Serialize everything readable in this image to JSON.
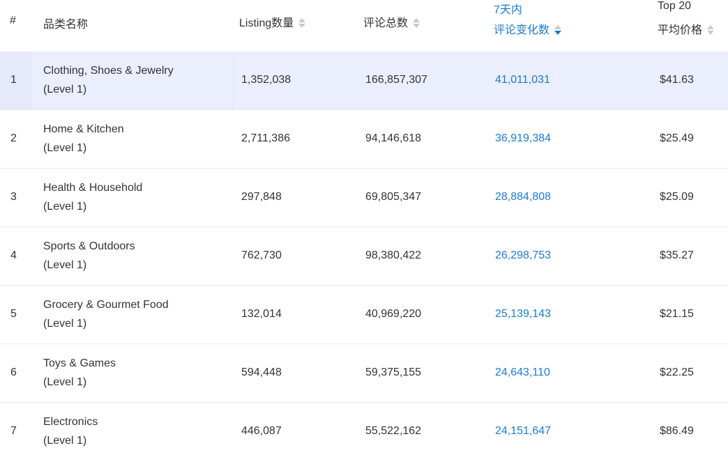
{
  "header": {
    "index": "#",
    "category": "品类名称",
    "listing": "Listing数量",
    "reviews_total": "评论总数",
    "change_line1": "7天内",
    "change_line2": "评论变化数",
    "price_line1": "Top 20",
    "price_line2": "平均价格"
  },
  "sort": {
    "active_column": "评论变化数",
    "direction": "descending"
  },
  "colors": {
    "accent": "#1b7bd4",
    "highlight_row": "#ebeefc"
  },
  "rows": [
    {
      "index": "1",
      "name": "Clothing, Shoes & Jewelry",
      "level": "(Level 1)",
      "listing": "1,352,038",
      "reviews": "166,857,307",
      "change": "41,011,031",
      "price": "$41.63"
    },
    {
      "index": "2",
      "name": "Home & Kitchen",
      "level": "(Level 1)",
      "listing": "2,711,386",
      "reviews": "94,146,618",
      "change": "36,919,384",
      "price": "$25.49"
    },
    {
      "index": "3",
      "name": "Health & Household",
      "level": "(Level 1)",
      "listing": "297,848",
      "reviews": "69,805,347",
      "change": "28,884,808",
      "price": "$25.09"
    },
    {
      "index": "4",
      "name": "Sports & Outdoors",
      "level": "(Level 1)",
      "listing": "762,730",
      "reviews": "98,380,422",
      "change": "26,298,753",
      "price": "$35.27"
    },
    {
      "index": "5",
      "name": "Grocery & Gourmet Food",
      "level": "(Level 1)",
      "listing": "132,014",
      "reviews": "40,969,220",
      "change": "25,139,143",
      "price": "$21.15"
    },
    {
      "index": "6",
      "name": "Toys & Games",
      "level": "(Level 1)",
      "listing": "594,448",
      "reviews": "59,375,155",
      "change": "24,643,110",
      "price": "$22.25"
    },
    {
      "index": "7",
      "name": "Electronics",
      "level": "(Level 1)",
      "listing": "446,087",
      "reviews": "55,522,162",
      "change": "24,151,647",
      "price": "$86.49"
    }
  ]
}
